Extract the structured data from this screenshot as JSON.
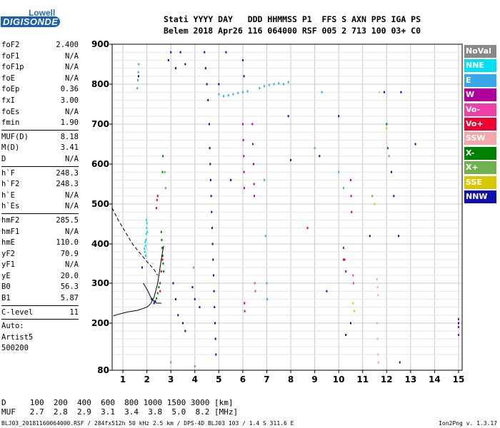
{
  "logo": {
    "top": "Lowell",
    "bottom": "DIGISONDE"
  },
  "header": {
    "line1": "Stati YYYY DAY   DDD HHMMSS P1  FFS S AXN PPS IGA PS",
    "line2": "Belem 2018 Apr26 116 064000 RSF 005 2 713 100 03+ C0"
  },
  "params": {
    "group1": [
      {
        "name": "foF2",
        "value": "2.400"
      },
      {
        "name": "foF1",
        "value": "N/A"
      },
      {
        "name": "foF1p",
        "value": "N/A"
      },
      {
        "name": "foE",
        "value": "N/A"
      },
      {
        "name": "foEp",
        "value": "0.36"
      },
      {
        "name": "fxI",
        "value": "3.00"
      },
      {
        "name": "foEs",
        "value": "N/A"
      },
      {
        "name": "fmin",
        "value": "1.90"
      }
    ],
    "group2": [
      {
        "name": "MUF(D)",
        "value": "8.18"
      },
      {
        "name": "M(D)",
        "value": "3.41"
      },
      {
        "name": "D",
        "value": "N/A"
      }
    ],
    "group3": [
      {
        "name": "h`F",
        "value": "248.3"
      },
      {
        "name": "h`F2",
        "value": "248.3"
      },
      {
        "name": "h`E",
        "value": "N/A"
      },
      {
        "name": "h`Es",
        "value": "N/A"
      }
    ],
    "group4": [
      {
        "name": "hmF2",
        "value": "285.5"
      },
      {
        "name": "hmF1",
        "value": "N/A"
      },
      {
        "name": "hmE",
        "value": "110.0"
      },
      {
        "name": "yF2",
        "value": "70.9"
      },
      {
        "name": "yF1",
        "value": "N/A"
      },
      {
        "name": "yE",
        "value": "20.0"
      },
      {
        "name": "B0",
        "value": "56.3"
      },
      {
        "name": "B1",
        "value": "5.87"
      }
    ],
    "group5": [
      {
        "name": "C-level",
        "value": "11"
      }
    ],
    "auto_lines": [
      "Auto:",
      "Artist5",
      "500200"
    ]
  },
  "legend": [
    {
      "label": "NoVal",
      "bg": "#888888",
      "fg": "#ffffff"
    },
    {
      "label": "NNE",
      "bg": "#00e0f0",
      "fg": "#ffffff"
    },
    {
      "label": "E",
      "bg": "#38a8e8",
      "fg": "#ffffff"
    },
    {
      "label": "W",
      "bg": "#b0009c",
      "fg": "#ffffff"
    },
    {
      "label": "Vo-",
      "bg": "#f040a8",
      "fg": "#ffffff"
    },
    {
      "label": "Vo+",
      "bg": "#ee0030",
      "fg": "#ffffff"
    },
    {
      "label": "SSW",
      "bg": "#f4a8a8",
      "fg": "#ffffff"
    },
    {
      "label": "X-",
      "bg": "#008000",
      "fg": "#ffffff"
    },
    {
      "label": "X+",
      "bg": "#70b050",
      "fg": "#ffffff"
    },
    {
      "label": "SSE",
      "bg": "#d8c800",
      "fg": "#ffffff"
    },
    {
      "label": "NNW",
      "bg": "#1010b0",
      "fg": "#ffffff"
    }
  ],
  "d_table": {
    "line1": "D     100  200  400  600  800 1000 1500 3000 [km]",
    "line2": "MUF   2.7  2.8  2.9  3.1  3.4  3.8  5.0  8.2 [MHz]"
  },
  "footer": "BLJ03_20181160064000.RSF / 284fx512h 50 kHz 2.5 km / DPS-4D BLJ03 103 / 1.4 S 311.6 E",
  "version": "Ion2Png v. 1.3.17",
  "chart_data": {
    "type": "scatter",
    "xlabel": "",
    "ylabel": "",
    "x_ticks": [
      1,
      2,
      3,
      4,
      5,
      6,
      7,
      8,
      9,
      10,
      11,
      12,
      13,
      14,
      15
    ],
    "y_ticks": [
      80,
      200,
      300,
      400,
      500,
      600,
      700,
      800,
      900
    ],
    "xlim": [
      0.55,
      15.15
    ],
    "ylim": [
      80,
      900
    ],
    "y_scale": "quasi-log",
    "grid": true,
    "series": [
      {
        "name": "NNE",
        "color": "#00e0f0",
        "points": [
          [
            1.92,
            380
          ],
          [
            1.94,
            395
          ],
          [
            1.96,
            410
          ],
          [
            1.97,
            425
          ],
          [
            1.99,
            440
          ],
          [
            2.0,
            452
          ],
          [
            1.95,
            370
          ],
          [
            1.98,
            460
          ],
          [
            2.02,
            430
          ],
          [
            1.93,
            405
          ],
          [
            1.9,
            388
          ]
        ]
      },
      {
        "name": "E",
        "color": "#38a8e8",
        "points": [
          [
            1.6,
            790
          ],
          [
            1.62,
            810
          ],
          [
            1.64,
            830
          ],
          [
            1.66,
            850
          ],
          [
            5.0,
            775
          ],
          [
            5.2,
            770
          ],
          [
            5.4,
            772
          ],
          [
            5.6,
            775
          ],
          [
            5.8,
            778
          ],
          [
            6.0,
            780
          ],
          [
            6.2,
            782
          ],
          [
            6.7,
            790
          ],
          [
            6.9,
            795
          ],
          [
            7.1,
            798
          ],
          [
            7.3,
            800
          ],
          [
            7.5,
            802
          ],
          [
            7.7,
            800
          ],
          [
            7.9,
            805
          ],
          [
            6.9,
            560
          ],
          [
            6.95,
            420
          ],
          [
            7.0,
            300
          ],
          [
            7.02,
            260
          ],
          [
            9.0,
            640
          ],
          [
            9.3,
            780
          ],
          [
            10.0,
            580
          ],
          [
            10.2,
            540
          ]
        ]
      },
      {
        "name": "W",
        "color": "#b0009c",
        "points": [
          [
            6.0,
            700
          ],
          [
            6.02,
            660
          ],
          [
            6.04,
            620
          ],
          [
            6.05,
            580
          ],
          [
            6.06,
            540
          ],
          [
            6.07,
            250
          ],
          [
            6.08,
            230
          ],
          [
            6.4,
            700
          ],
          [
            6.42,
            650
          ],
          [
            6.45,
            600
          ],
          [
            6.47,
            550
          ],
          [
            6.48,
            520
          ],
          [
            10.2,
            390
          ],
          [
            10.25,
            360
          ],
          [
            10.3,
            330
          ],
          [
            10.5,
            560
          ],
          [
            10.52,
            520
          ],
          [
            10.54,
            480
          ],
          [
            15.0,
            210
          ],
          [
            15.0,
            190
          ],
          [
            15.0,
            170
          ]
        ]
      },
      {
        "name": "Vo-",
        "color": "#f040a8",
        "points": [
          [
            6.5,
            300
          ],
          [
            6.52,
            280
          ],
          [
            10.6,
            320
          ],
          [
            10.62,
            300
          ]
        ]
      },
      {
        "name": "Vo+",
        "color": "#ee0030",
        "points": [
          [
            2.4,
            490
          ],
          [
            2.42,
            510
          ],
          [
            2.45,
            520
          ],
          [
            2.55,
            280
          ],
          [
            2.6,
            330
          ],
          [
            2.65,
            360
          ],
          [
            8.7,
            440
          ],
          [
            10.2,
            360
          ]
        ]
      },
      {
        "name": "SSW",
        "color": "#f4a8a8",
        "points": [
          [
            11.6,
            310
          ],
          [
            11.62,
            290
          ],
          [
            11.64,
            270
          ],
          [
            11.6,
            200
          ],
          [
            11.62,
            160
          ],
          [
            11.64,
            120
          ],
          [
            11.66,
            100
          ],
          [
            11.7,
            780
          ]
        ]
      },
      {
        "name": "X-",
        "color": "#008000",
        "points": [
          [
            2.6,
            430
          ],
          [
            2.62,
            410
          ],
          [
            2.64,
            390
          ],
          [
            2.66,
            370
          ],
          [
            2.68,
            350
          ],
          [
            2.7,
            330
          ],
          [
            2.55,
            300
          ],
          [
            2.5,
            290
          ],
          [
            2.45,
            275
          ],
          [
            2.4,
            262
          ],
          [
            2.65,
            580
          ],
          [
            2.67,
            620
          ],
          [
            12.0,
            700
          ],
          [
            12.05,
            640
          ]
        ]
      },
      {
        "name": "X+",
        "color": "#70b050",
        "points": [
          [
            2.75,
            580
          ],
          [
            2.78,
            540
          ],
          [
            3.95,
            340
          ],
          [
            11.4,
            520
          ],
          [
            12.1,
            620
          ]
        ]
      },
      {
        "name": "SSE",
        "color": "#d8c800",
        "points": [
          [
            10.6,
            250
          ],
          [
            10.65,
            230
          ],
          [
            12.0,
            690
          ],
          [
            11.5,
            500
          ]
        ]
      },
      {
        "name": "NNW",
        "color": "#1010b0",
        "points": [
          [
            1.65,
            820
          ],
          [
            1.8,
            340
          ],
          [
            2.2,
            260
          ],
          [
            2.3,
            250
          ],
          [
            2.35,
            255
          ],
          [
            2.9,
            860
          ],
          [
            3.0,
            880
          ],
          [
            3.2,
            840
          ],
          [
            3.4,
            880
          ],
          [
            3.6,
            850
          ],
          [
            3.1,
            300
          ],
          [
            3.2,
            260
          ],
          [
            3.3,
            220
          ],
          [
            3.5,
            200
          ],
          [
            3.6,
            180
          ],
          [
            3.9,
            290
          ],
          [
            4.0,
            260
          ],
          [
            4.2,
            240
          ],
          [
            4.4,
            880
          ],
          [
            4.45,
            840
          ],
          [
            4.5,
            800
          ],
          [
            4.55,
            760
          ],
          [
            4.6,
            700
          ],
          [
            4.62,
            640
          ],
          [
            4.64,
            600
          ],
          [
            4.66,
            560
          ],
          [
            4.68,
            520
          ],
          [
            4.7,
            480
          ],
          [
            4.72,
            440
          ],
          [
            4.74,
            400
          ],
          [
            4.76,
            360
          ],
          [
            4.78,
            320
          ],
          [
            4.8,
            280
          ],
          [
            4.82,
            240
          ],
          [
            4.84,
            200
          ],
          [
            4.86,
            160
          ],
          [
            4.88,
            120
          ],
          [
            5.0,
            800
          ],
          [
            5.3,
            880
          ],
          [
            5.5,
            560
          ],
          [
            6.0,
            860
          ],
          [
            6.05,
            820
          ],
          [
            7.9,
            720
          ],
          [
            8.0,
            610
          ],
          [
            9.2,
            620
          ],
          [
            9.5,
            280
          ],
          [
            10.0,
            720
          ],
          [
            10.3,
            170
          ],
          [
            10.5,
            200
          ],
          [
            11.3,
            420
          ],
          [
            11.9,
            780
          ],
          [
            12.2,
            580
          ],
          [
            12.3,
            520
          ],
          [
            12.5,
            420
          ],
          [
            12.6,
            780
          ],
          [
            12.55,
            100
          ],
          [
            13.2,
            650
          ],
          [
            15.0,
            200
          ]
        ]
      },
      {
        "name": "NoVal",
        "color": "#888888",
        "points": [
          [
            3.0,
            100
          ],
          [
            4.0,
            90
          ]
        ]
      }
    ],
    "profile_curve": [
      [
        0.6,
        218
      ],
      [
        0.8,
        222
      ],
      [
        1.0,
        225
      ],
      [
        1.2,
        228
      ],
      [
        1.4,
        230
      ],
      [
        1.6,
        232
      ],
      [
        1.8,
        236
      ],
      [
        2.0,
        240
      ],
      [
        2.15,
        248
      ],
      [
        2.3,
        265
      ],
      [
        2.45,
        300
      ],
      [
        2.55,
        340
      ],
      [
        2.65,
        380
      ],
      [
        2.7,
        395
      ]
    ],
    "extrapolated_curve": [
      [
        0.55,
        490
      ],
      [
        0.8,
        460
      ],
      [
        1.0,
        440
      ],
      [
        1.2,
        420
      ],
      [
        1.4,
        400
      ],
      [
        1.6,
        385
      ],
      [
        1.8,
        370
      ],
      [
        2.0,
        355
      ],
      [
        2.15,
        345
      ],
      [
        2.3,
        335
      ],
      [
        2.45,
        320
      ]
    ],
    "trace_line": [
      [
        1.85,
        300
      ],
      [
        2.0,
        285
      ],
      [
        2.2,
        260
      ],
      [
        2.4,
        250
      ],
      [
        2.6,
        250
      ]
    ]
  }
}
